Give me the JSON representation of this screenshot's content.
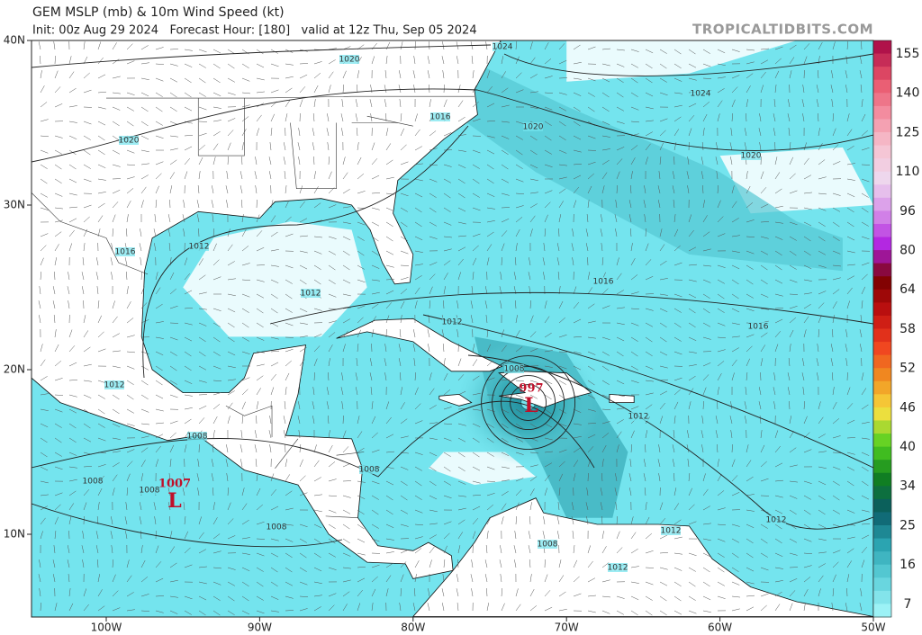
{
  "header": {
    "title": "GEM MSLP (mb) & 10m Wind Speed (kt)",
    "subtitle": "Init: 00z Aug 29 2024   Forecast Hour: [180]   valid at 12z Thu, Sep 05 2024",
    "brand": "TROPICALTIDBITS.COM"
  },
  "map": {
    "lat_ticks": [
      {
        "value": 40,
        "label": "40N"
      },
      {
        "value": 30,
        "label": "30N"
      },
      {
        "value": 20,
        "label": "20N"
      },
      {
        "value": 10,
        "label": "10N"
      }
    ],
    "lon_ticks": [
      {
        "value": -100,
        "label": "100W"
      },
      {
        "value": -90,
        "label": "90W"
      },
      {
        "value": -80,
        "label": "80W"
      },
      {
        "value": -70,
        "label": "70W"
      },
      {
        "value": -60,
        "label": "60W"
      },
      {
        "value": -50,
        "label": "50W"
      }
    ],
    "isobar_labels": [
      1024,
      1020,
      1024,
      1016,
      1020,
      1020,
      1020,
      1016,
      1012,
      1012,
      1016,
      1012,
      1016,
      1008,
      1012,
      1012,
      1008,
      1008,
      1008,
      1008,
      1008,
      1012,
      1012,
      1008,
      1012
    ],
    "lows": [
      {
        "pressure": 997,
        "symbol": "L"
      },
      {
        "pressure": 1007,
        "symbol": "L"
      }
    ]
  },
  "colorbar": {
    "ticks": [
      155,
      140,
      125,
      110,
      96,
      80,
      64,
      58,
      52,
      46,
      40,
      34,
      25,
      16,
      7
    ]
  }
}
